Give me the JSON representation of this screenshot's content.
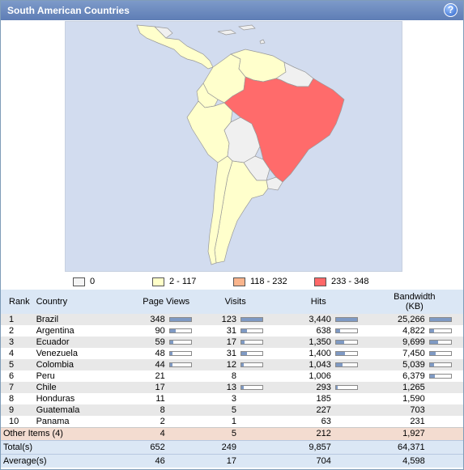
{
  "header": {
    "title": "South American Countries",
    "help_icon": "?"
  },
  "map": {
    "colors": {
      "zero": "#f0f0f0",
      "low": "#ffffcc",
      "mid": "#f5b48a",
      "high": "#ff6b6b",
      "sea": "#d2dcef"
    }
  },
  "legend": [
    {
      "label": "0",
      "color": "#f4f4f4"
    },
    {
      "label": "2 - 117",
      "color": "#ffffc8"
    },
    {
      "label": "118 - 232",
      "color": "#f9b48c"
    },
    {
      "label": "233 - 348",
      "color": "#ff6868"
    }
  ],
  "table": {
    "headers": {
      "rank": "Rank",
      "country": "Country",
      "pageviews": "Page Views",
      "visits": "Visits",
      "hits": "Hits",
      "bandwidth": "Bandwidth",
      "bandwidth_unit": "(KB)"
    },
    "rows": [
      {
        "rank": "1",
        "country": "Brazil",
        "pageviews": "348",
        "visits": "123",
        "hits": "3,440",
        "bandwidth": "25,266",
        "pv_frac": 1.0,
        "v_frac": 1.0,
        "h_frac": 1.0,
        "b_frac": 1.0
      },
      {
        "rank": "2",
        "country": "Argentina",
        "pageviews": "90",
        "visits": "31",
        "hits": "638",
        "bandwidth": "4,822",
        "pv_frac": 0.26,
        "v_frac": 0.25,
        "h_frac": 0.19,
        "b_frac": 0.19
      },
      {
        "rank": "3",
        "country": "Ecuador",
        "pageviews": "59",
        "visits": "17",
        "hits": "1,350",
        "bandwidth": "9,699",
        "pv_frac": 0.17,
        "v_frac": 0.14,
        "h_frac": 0.39,
        "b_frac": 0.38
      },
      {
        "rank": "4",
        "country": "Venezuela",
        "pageviews": "48",
        "visits": "31",
        "hits": "1,400",
        "bandwidth": "7,450",
        "pv_frac": 0.14,
        "v_frac": 0.25,
        "h_frac": 0.41,
        "b_frac": 0.29
      },
      {
        "rank": "5",
        "country": "Colombia",
        "pageviews": "44",
        "visits": "12",
        "hits": "1,043",
        "bandwidth": "5,039",
        "pv_frac": 0.13,
        "v_frac": 0.1,
        "h_frac": 0.3,
        "b_frac": 0.2
      },
      {
        "rank": "6",
        "country": "Peru",
        "pageviews": "21",
        "visits": "8",
        "hits": "1,006",
        "bandwidth": "6,379",
        "pv_frac": null,
        "v_frac": null,
        "h_frac": null,
        "b_frac": 0.25
      },
      {
        "rank": "7",
        "country": "Chile",
        "pageviews": "17",
        "visits": "13",
        "hits": "293",
        "bandwidth": "1,265",
        "pv_frac": null,
        "v_frac": 0.1,
        "h_frac": 0.08,
        "b_frac": null
      },
      {
        "rank": "8",
        "country": "Honduras",
        "pageviews": "11",
        "visits": "3",
        "hits": "185",
        "bandwidth": "1,590",
        "pv_frac": null,
        "v_frac": null,
        "h_frac": null,
        "b_frac": null
      },
      {
        "rank": "9",
        "country": "Guatemala",
        "pageviews": "8",
        "visits": "5",
        "hits": "227",
        "bandwidth": "703",
        "pv_frac": null,
        "v_frac": null,
        "h_frac": null,
        "b_frac": null
      },
      {
        "rank": "10",
        "country": "Panama",
        "pageviews": "2",
        "visits": "1",
        "hits": "63",
        "bandwidth": "231",
        "pv_frac": null,
        "v_frac": null,
        "h_frac": null,
        "b_frac": null
      }
    ],
    "other": {
      "label": "Other Items (4)",
      "pageviews": "4",
      "visits": "5",
      "hits": "212",
      "bandwidth": "1,927"
    },
    "total": {
      "label": "Total(s)",
      "pageviews": "652",
      "visits": "249",
      "hits": "9,857",
      "bandwidth": "64,371"
    },
    "average": {
      "label": "Average(s)",
      "pageviews": "46",
      "visits": "17",
      "hits": "704",
      "bandwidth": "4,598"
    }
  }
}
